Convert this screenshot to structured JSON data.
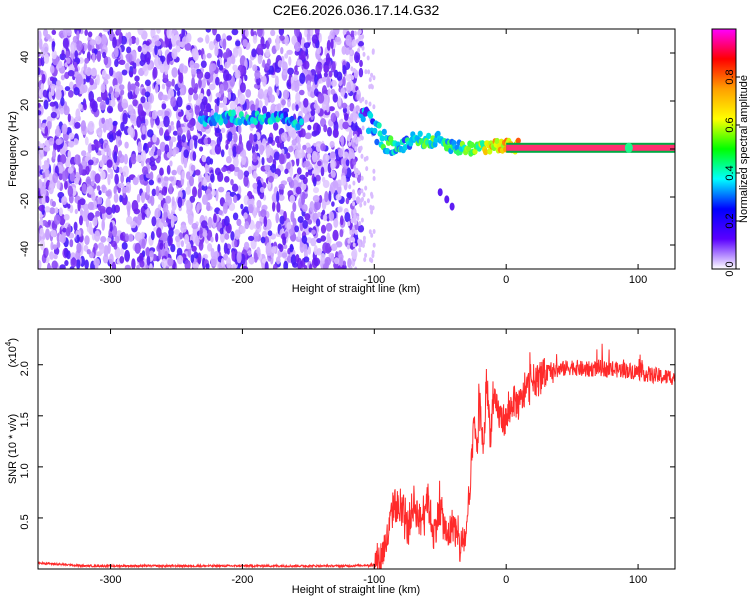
{
  "title": "C2E6.2026.036.17.14.G32",
  "colors": {
    "snr_line": "#ff2a2a",
    "ridge_band": "#00aa44"
  },
  "colorbar_ramp": [
    "#ff00ff",
    "#ff0000",
    "#ffa000",
    "#ffff00",
    "#00ff00",
    "#00ffff",
    "#0000ff",
    "#5a00ff",
    "#ffffff"
  ],
  "chart_data": [
    {
      "type": "heatmap",
      "title": "C2E6.2026.036.17.14.G32",
      "xlabel": "Height of straight line (km)",
      "ylabel": "Frequency (Hz)",
      "xlim": [
        -355,
        128
      ],
      "ylim": [
        -50,
        50
      ],
      "xticks": [
        -300,
        -200,
        -100,
        0,
        100
      ],
      "xtick_labels": [
        "-300",
        "-200",
        "-100",
        "0",
        "100"
      ],
      "yticks": [
        -40,
        -20,
        0,
        20,
        40
      ],
      "ytick_labels": [
        "-40",
        "-20",
        "0",
        "20",
        "40"
      ],
      "colorbar": {
        "label": "Normalized spectral amplitude",
        "range": [
          0,
          1
        ],
        "ticks": [
          0.0,
          0.2,
          0.4,
          0.6,
          0.8
        ],
        "tick_labels": [
          "0.0",
          "0.2",
          "0.4",
          "0.6",
          "0.8"
        ]
      },
      "noise_region_x": [
        -355,
        -110
      ],
      "ridge": [
        {
          "x": -230,
          "y": 12,
          "v": 0.35
        },
        {
          "x": -215,
          "y": 13,
          "v": 0.4
        },
        {
          "x": -200,
          "y": 13,
          "v": 0.45
        },
        {
          "x": -185,
          "y": 13,
          "v": 0.4
        },
        {
          "x": -170,
          "y": 13,
          "v": 0.4
        },
        {
          "x": -160,
          "y": 11,
          "v": 0.3
        },
        {
          "x": -108,
          "y": 14,
          "v": 0.3
        },
        {
          "x": -100,
          "y": 8,
          "v": 0.4
        },
        {
          "x": -90,
          "y": 2,
          "v": 0.45
        },
        {
          "x": -80,
          "y": 0,
          "v": 0.4
        },
        {
          "x": -70,
          "y": 5,
          "v": 0.45
        },
        {
          "x": -60,
          "y": 3,
          "v": 0.5
        },
        {
          "x": -50,
          "y": 4,
          "v": 0.45
        },
        {
          "x": -40,
          "y": 1,
          "v": 0.4
        },
        {
          "x": -30,
          "y": 0,
          "v": 0.5
        },
        {
          "x": -20,
          "y": 1,
          "v": 0.6
        },
        {
          "x": -10,
          "y": 1,
          "v": 0.7
        },
        {
          "x": 0,
          "y": 1,
          "v": 0.75
        },
        {
          "x": 20,
          "y": 1,
          "v": 0.85
        },
        {
          "x": 50,
          "y": 1,
          "v": 0.9
        },
        {
          "x": 90,
          "y": 1,
          "v": 0.9
        },
        {
          "x": 128,
          "y": 1,
          "v": 0.95
        }
      ],
      "tail": [
        {
          "x": -50,
          "y": -18
        },
        {
          "x": -45,
          "y": -21
        },
        {
          "x": -41,
          "y": -24
        }
      ]
    },
    {
      "type": "line",
      "xlabel": "Height of straight line (km)",
      "ylabel": "SNR (10 * v/v)",
      "yscale_note": "(x10",
      "yscale_exponent": "4",
      "yscale_suffix": ")",
      "xlim": [
        -355,
        128
      ],
      "ylim": [
        0,
        2.35
      ],
      "xticks": [
        -300,
        -200,
        -100,
        0,
        100
      ],
      "xtick_labels": [
        "-300",
        "-200",
        "-100",
        "0",
        "100"
      ],
      "yticks": [
        0.5,
        1.0,
        1.5,
        2.0
      ],
      "ytick_labels": [
        "0.5",
        "1.0",
        "1.5",
        "2.0"
      ],
      "series": [
        {
          "name": "SNR",
          "x": [
            -355,
            -320,
            -280,
            -240,
            -200,
            -160,
            -120,
            -100,
            -95,
            -90,
            -85,
            -80,
            -75,
            -70,
            -65,
            -60,
            -55,
            -50,
            -45,
            -40,
            -35,
            -30,
            -27,
            -25,
            -22,
            -20,
            -17,
            -15,
            -12,
            -10,
            -5,
            0,
            5,
            10,
            15,
            20,
            25,
            30,
            40,
            50,
            60,
            70,
            80,
            90,
            100,
            110,
            120,
            128
          ],
          "y": [
            0.06,
            0.03,
            0.03,
            0.03,
            0.03,
            0.03,
            0.03,
            0.04,
            0.12,
            0.3,
            0.65,
            0.55,
            0.4,
            0.65,
            0.45,
            0.72,
            0.35,
            0.6,
            0.3,
            0.45,
            0.2,
            0.35,
            0.8,
            1.4,
            1.2,
            1.65,
            1.1,
            1.9,
            1.3,
            1.65,
            1.5,
            1.45,
            1.65,
            1.6,
            1.75,
            1.85,
            1.85,
            1.92,
            1.95,
            1.98,
            1.95,
            1.97,
            1.95,
            1.95,
            1.93,
            1.9,
            1.88,
            1.88
          ]
        }
      ],
      "noise": [
        {
          "from": -355,
          "to": -105,
          "amp": 0.01
        },
        {
          "from": -100,
          "to": -20,
          "amp": 0.18
        },
        {
          "from": -20,
          "to": 30,
          "amp": 0.16
        },
        {
          "from": 30,
          "to": 128,
          "amp": 0.08
        }
      ]
    }
  ]
}
